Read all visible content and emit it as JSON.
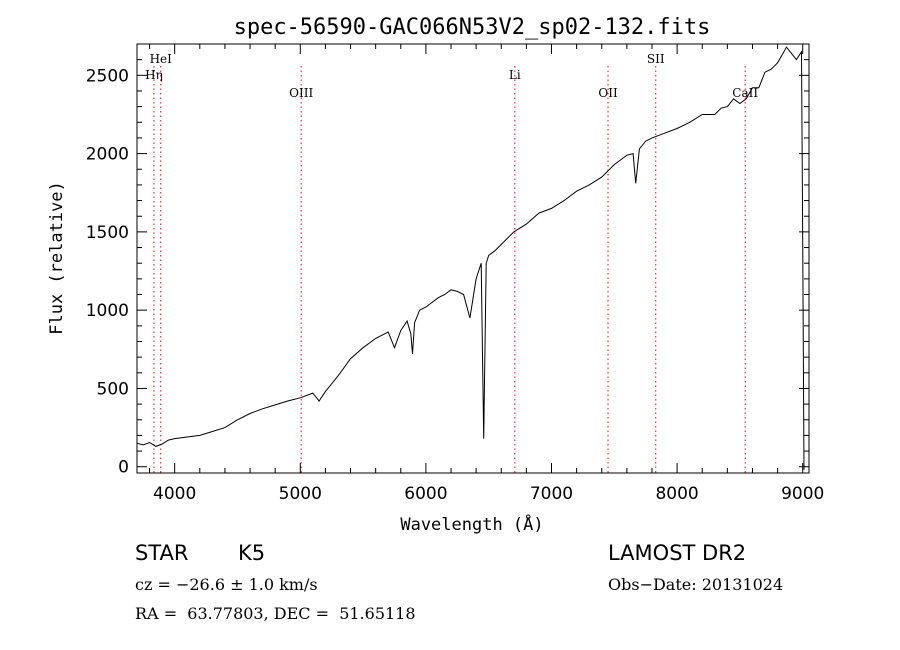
{
  "chart_data": {
    "type": "line",
    "title": "spec-56590-GAC066N53V2_sp02-132.fits",
    "xlabel": "Wavelength (Å)",
    "ylabel": "Flux (relative)",
    "xlim": [
      3700,
      9050
    ],
    "ylim": [
      -40,
      2700
    ],
    "xticks": [
      4000,
      5000,
      6000,
      7000,
      8000,
      9000
    ],
    "yticks": [
      0,
      500,
      1000,
      1500,
      2000,
      2500
    ],
    "grid": false,
    "line_color": "#000000",
    "marker_color": "#ff0000",
    "series": [
      {
        "x": [
          3700,
          3750,
          3800,
          3850,
          3900,
          3950,
          4000,
          4100,
          4200,
          4300,
          4400,
          4500,
          4600,
          4700,
          4800,
          4900,
          5000,
          5100,
          5150,
          5200,
          5300,
          5400,
          5500,
          5600,
          5700,
          5750,
          5800,
          5850,
          5880,
          5893,
          5910,
          5950,
          6000,
          6100,
          6150,
          6200,
          6250,
          6300,
          6350,
          6400,
          6440,
          6460,
          6480,
          6500,
          6550,
          6600,
          6700,
          6800,
          6900,
          7000,
          7100,
          7200,
          7300,
          7400,
          7500,
          7550,
          7600,
          7650,
          7670,
          7700,
          7750,
          7800,
          7900,
          8000,
          8100,
          8200,
          8300,
          8350,
          8400,
          8450,
          8500,
          8550,
          8600,
          8650,
          8700,
          8750,
          8800,
          8850,
          8870,
          8900,
          8950,
          8990,
          9000,
          9010
        ],
        "y": [
          150,
          140,
          155,
          130,
          145,
          170,
          180,
          190,
          200,
          225,
          250,
          300,
          340,
          370,
          395,
          420,
          440,
          470,
          420,
          480,
          580,
          690,
          760,
          820,
          860,
          760,
          870,
          930,
          850,
          720,
          920,
          1000,
          1020,
          1080,
          1100,
          1130,
          1120,
          1100,
          950,
          1200,
          1300,
          180,
          1300,
          1350,
          1380,
          1420,
          1500,
          1550,
          1620,
          1650,
          1700,
          1760,
          1800,
          1850,
          1930,
          1960,
          1990,
          2000,
          1810,
          2030,
          2080,
          2100,
          2130,
          2160,
          2200,
          2250,
          2250,
          2290,
          2300,
          2350,
          2320,
          2350,
          2420,
          2420,
          2520,
          2540,
          2580,
          2650,
          2680,
          2650,
          2600,
          2650,
          1450,
          -20
        ]
      }
    ],
    "line_markers": [
      {
        "label": "HeI",
        "x": 3889
      },
      {
        "label": "Hη",
        "x": 3835
      },
      {
        "label": "OIII",
        "x": 5007
      },
      {
        "label": "Li",
        "x": 6708
      },
      {
        "label": "OII",
        "x": 7450
      },
      {
        "label": "SII",
        "x": 7830
      },
      {
        "label": "CaII",
        "x": 8542
      }
    ]
  },
  "info": {
    "class": "STAR",
    "subclass": "K5",
    "survey": "LAMOST DR2",
    "redshift": "cz = −26.6 ± 1.0 km/s",
    "obs_date": "Obs−Date: 20131024",
    "coords": "RA =  63.77803, DEC =  51.65118"
  }
}
